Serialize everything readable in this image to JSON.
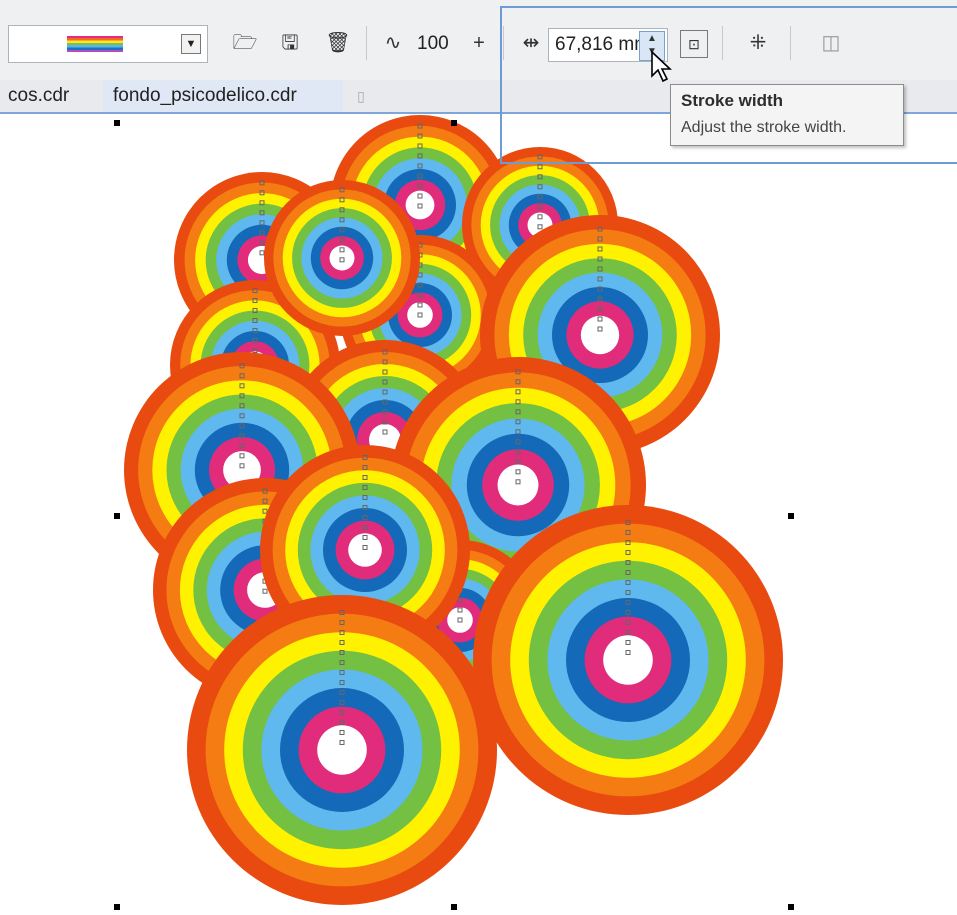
{
  "toolbar": {
    "fill_combo": {
      "label": "rainbow-gradient-swatch"
    },
    "icons": [
      "folder-open-icon",
      "save-icon",
      "trash-icon",
      "wave-icon",
      "plus-icon",
      "stroke-width-icon",
      "corner-icon",
      "scatter-icon",
      "copy-icon"
    ],
    "smoothing_value": "100",
    "stroke_width_value": "67,816 mm"
  },
  "tabs": [
    {
      "label": "cos.cdr"
    },
    {
      "label": "fondo_psicodelico.cdr"
    }
  ],
  "tooltip": {
    "title": "Stroke width",
    "description": "Adjust the stroke width."
  },
  "colors": {
    "ring_outer": "#e84a0f",
    "ring_orange": "#f47c12",
    "ring_yellow": "#fff200",
    "ring_green": "#74c043",
    "ring_lightblue": "#5fb8ee",
    "ring_blue": "#1469b8",
    "ring_pink": "#e02c7a",
    "center": "#ffffff"
  }
}
